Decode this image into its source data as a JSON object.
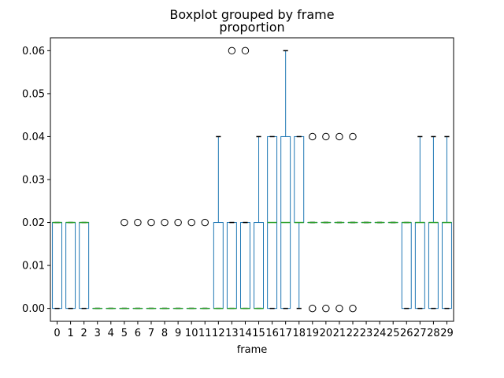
{
  "chart_data": {
    "type": "boxplot",
    "title": "Boxplot grouped by frame",
    "subtitle": "proportion",
    "xlabel": "frame",
    "ylabel": "",
    "ylim": [
      -0.003,
      0.063
    ],
    "yticks": [
      0.0,
      0.01,
      0.02,
      0.03,
      0.04,
      0.05,
      0.06
    ],
    "ytick_labels": [
      "0.00",
      "0.01",
      "0.02",
      "0.03",
      "0.04",
      "0.05",
      "0.06"
    ],
    "grid": false,
    "legend": "none",
    "colors": {
      "box": "#1f77b4",
      "median": "#2ca02c",
      "cap": "#000000",
      "flier": "#000000"
    },
    "categories": [
      "0",
      "1",
      "2",
      "3",
      "4",
      "5",
      "6",
      "7",
      "8",
      "9",
      "10",
      "11",
      "12",
      "13",
      "14",
      "15",
      "16",
      "17",
      "18",
      "19",
      "20",
      "21",
      "22",
      "23",
      "24",
      "25",
      "26",
      "27",
      "28",
      "29"
    ],
    "boxes": [
      {
        "q1": 0.0,
        "median": 0.02,
        "q3": 0.02,
        "whislo": 0.0,
        "whishi": 0.02,
        "fliers": []
      },
      {
        "q1": 0.0,
        "median": 0.02,
        "q3": 0.02,
        "whislo": 0.0,
        "whishi": 0.02,
        "fliers": []
      },
      {
        "q1": 0.0,
        "median": 0.02,
        "q3": 0.02,
        "whislo": 0.0,
        "whishi": 0.02,
        "fliers": []
      },
      {
        "q1": 0.0,
        "median": 0.0,
        "q3": 0.0,
        "whislo": 0.0,
        "whishi": 0.0,
        "fliers": []
      },
      {
        "q1": 0.0,
        "median": 0.0,
        "q3": 0.0,
        "whislo": 0.0,
        "whishi": 0.0,
        "fliers": []
      },
      {
        "q1": 0.0,
        "median": 0.0,
        "q3": 0.0,
        "whislo": 0.0,
        "whishi": 0.0,
        "fliers": [
          0.02
        ]
      },
      {
        "q1": 0.0,
        "median": 0.0,
        "q3": 0.0,
        "whislo": 0.0,
        "whishi": 0.0,
        "fliers": [
          0.02
        ]
      },
      {
        "q1": 0.0,
        "median": 0.0,
        "q3": 0.0,
        "whislo": 0.0,
        "whishi": 0.0,
        "fliers": [
          0.02
        ]
      },
      {
        "q1": 0.0,
        "median": 0.0,
        "q3": 0.0,
        "whislo": 0.0,
        "whishi": 0.0,
        "fliers": [
          0.02
        ]
      },
      {
        "q1": 0.0,
        "median": 0.0,
        "q3": 0.0,
        "whislo": 0.0,
        "whishi": 0.0,
        "fliers": [
          0.02
        ]
      },
      {
        "q1": 0.0,
        "median": 0.0,
        "q3": 0.0,
        "whislo": 0.0,
        "whishi": 0.0,
        "fliers": [
          0.02
        ]
      },
      {
        "q1": 0.0,
        "median": 0.0,
        "q3": 0.0,
        "whislo": 0.0,
        "whishi": 0.0,
        "fliers": [
          0.02
        ]
      },
      {
        "q1": 0.0,
        "median": 0.0,
        "q3": 0.02,
        "whislo": 0.0,
        "whishi": 0.04,
        "fliers": []
      },
      {
        "q1": 0.0,
        "median": 0.0,
        "q3": 0.02,
        "whislo": 0.0,
        "whishi": 0.02,
        "fliers": [
          0.06
        ]
      },
      {
        "q1": 0.0,
        "median": 0.0,
        "q3": 0.02,
        "whislo": 0.0,
        "whishi": 0.02,
        "fliers": [
          0.06
        ]
      },
      {
        "q1": 0.0,
        "median": 0.0,
        "q3": 0.02,
        "whislo": 0.0,
        "whishi": 0.04,
        "fliers": []
      },
      {
        "q1": 0.0,
        "median": 0.02,
        "q3": 0.04,
        "whislo": 0.0,
        "whishi": 0.04,
        "fliers": []
      },
      {
        "q1": 0.0,
        "median": 0.02,
        "q3": 0.04,
        "whislo": 0.0,
        "whishi": 0.06,
        "fliers": []
      },
      {
        "q1": 0.02,
        "median": 0.02,
        "q3": 0.04,
        "whislo": 0.0,
        "whishi": 0.04,
        "fliers": []
      },
      {
        "q1": 0.02,
        "median": 0.02,
        "q3": 0.02,
        "whislo": 0.02,
        "whishi": 0.02,
        "fliers": [
          0.0,
          0.04
        ]
      },
      {
        "q1": 0.02,
        "median": 0.02,
        "q3": 0.02,
        "whislo": 0.02,
        "whishi": 0.02,
        "fliers": [
          0.0,
          0.04
        ]
      },
      {
        "q1": 0.02,
        "median": 0.02,
        "q3": 0.02,
        "whislo": 0.02,
        "whishi": 0.02,
        "fliers": [
          0.0,
          0.04
        ]
      },
      {
        "q1": 0.02,
        "median": 0.02,
        "q3": 0.02,
        "whislo": 0.02,
        "whishi": 0.02,
        "fliers": [
          0.0,
          0.04
        ]
      },
      {
        "q1": 0.02,
        "median": 0.02,
        "q3": 0.02,
        "whislo": 0.02,
        "whishi": 0.02,
        "fliers": []
      },
      {
        "q1": 0.02,
        "median": 0.02,
        "q3": 0.02,
        "whislo": 0.02,
        "whishi": 0.02,
        "fliers": []
      },
      {
        "q1": 0.02,
        "median": 0.02,
        "q3": 0.02,
        "whislo": 0.02,
        "whishi": 0.02,
        "fliers": []
      },
      {
        "q1": 0.0,
        "median": 0.02,
        "q3": 0.02,
        "whislo": 0.0,
        "whishi": 0.02,
        "fliers": []
      },
      {
        "q1": 0.0,
        "median": 0.02,
        "q3": 0.02,
        "whislo": 0.0,
        "whishi": 0.04,
        "fliers": []
      },
      {
        "q1": 0.0,
        "median": 0.02,
        "q3": 0.02,
        "whislo": 0.0,
        "whishi": 0.04,
        "fliers": []
      },
      {
        "q1": 0.0,
        "median": 0.02,
        "q3": 0.02,
        "whislo": 0.0,
        "whishi": 0.04,
        "fliers": []
      }
    ]
  }
}
